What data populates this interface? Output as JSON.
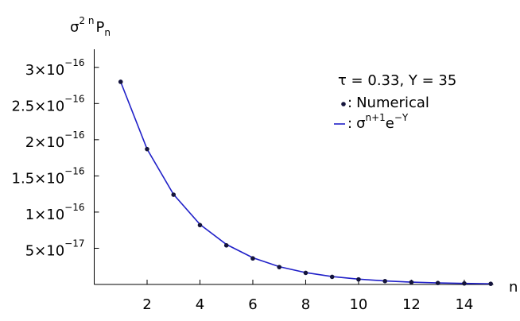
{
  "chart_data": {
    "type": "scatter-line",
    "ylabel": [
      "σ",
      "2 n",
      "P",
      "n"
    ],
    "xlabel": "n",
    "legend_title": "τ = 0.33, Y = 35",
    "legend_separator": ":",
    "x": [
      1,
      2,
      3,
      4,
      5,
      6,
      7,
      8,
      9,
      10,
      11,
      12,
      13,
      14,
      15
    ],
    "series": [
      {
        "name": "Numerical",
        "kind": "points",
        "color": "#14143c",
        "values": [
          2.8e-16,
          1.87e-16,
          1.24e-16,
          8.2e-17,
          5.4e-17,
          3.6e-17,
          2.4e-17,
          1.6e-17,
          1.05e-17,
          7e-18,
          4.6e-18,
          3.1e-18,
          2e-18,
          1.4e-18,
          9e-19
        ]
      },
      {
        "name": [
          "σ",
          "n+1",
          "e",
          "−Y"
        ],
        "name_superscript": [
          false,
          true,
          false,
          true
        ],
        "kind": "line",
        "color": "#2020c8",
        "values": [
          2.8e-16,
          1.87e-16,
          1.245e-16,
          8.3e-17,
          5.53e-17,
          3.69e-17,
          2.46e-17,
          1.64e-17,
          1.09e-17,
          7.3e-18,
          4.9e-18,
          3.2e-18,
          2.16e-18,
          1.44e-18,
          9.6e-19
        ]
      }
    ],
    "xlim": [
      0,
      15.1
    ],
    "xticks": [
      2,
      4,
      6,
      8,
      10,
      12,
      14
    ],
    "ylim": [
      0,
      3.25e-16
    ],
    "yticks": [
      {
        "value": 5e-17,
        "label": "5×10",
        "exponent": "−17"
      },
      {
        "value": 1e-16,
        "label": "1×10",
        "exponent": "−16"
      },
      {
        "value": 1.5e-16,
        "label": "1.5×10",
        "exponent": "−16"
      },
      {
        "value": 2e-16,
        "label": "2×10",
        "exponent": "−16"
      },
      {
        "value": 2.5e-16,
        "label": "2.5×10",
        "exponent": "−16"
      },
      {
        "value": 3e-16,
        "label": "3×10",
        "exponent": "−16"
      }
    ]
  }
}
